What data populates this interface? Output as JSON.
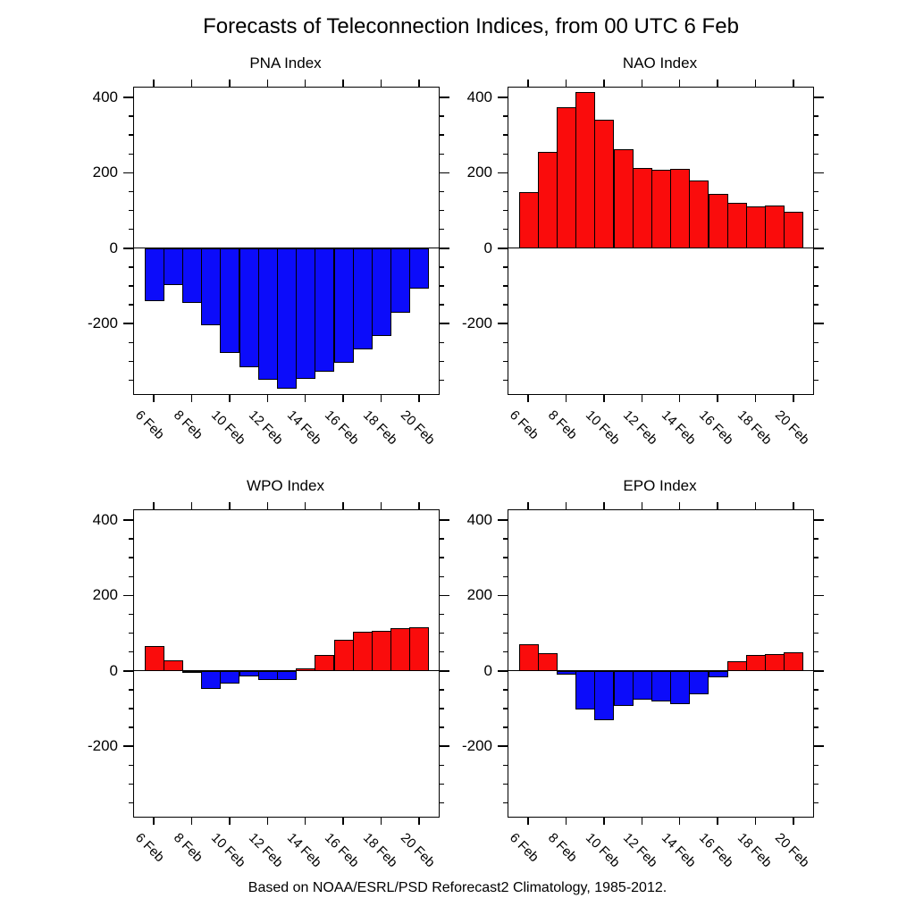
{
  "title": "Forecasts of Teleconnection Indices, from 00 UTC 6 Feb",
  "footer": "Based on NOAA/ESRL/PSD Reforecast2 Climatology, 1985-2012.",
  "colors": {
    "positive_bar": "#fa0c0c",
    "negative_bar": "#0c0cfa",
    "axis": "#000000",
    "background": "#ffffff"
  },
  "chart_data": [
    {
      "type": "bar",
      "title": "PNA Index",
      "categories": [
        "6 Feb",
        "7 Feb",
        "8 Feb",
        "9 Feb",
        "10 Feb",
        "11 Feb",
        "12 Feb",
        "13 Feb",
        "14 Feb",
        "15 Feb",
        "16 Feb",
        "17 Feb",
        "18 Feb",
        "19 Feb",
        "20 Feb"
      ],
      "values": [
        -140,
        -98,
        -145,
        -205,
        -278,
        -316,
        -350,
        -372,
        -346,
        -328,
        -305,
        -268,
        -233,
        -172,
        -108
      ],
      "x_tick_labels": [
        "6 Feb",
        "8 Feb",
        "10 Feb",
        "12 Feb",
        "14 Feb",
        "16 Feb",
        "18 Feb",
        "20 Feb"
      ],
      "y_tick_labels": [
        "400",
        "200",
        "0",
        "-200"
      ],
      "ylim": [
        -387,
        426
      ],
      "y_major_ticks": [
        400,
        200,
        0,
        -200
      ],
      "y_minor_step": 50,
      "grid": false,
      "legend": "none"
    },
    {
      "type": "bar",
      "title": "NAO Index",
      "categories": [
        "6 Feb",
        "7 Feb",
        "8 Feb",
        "9 Feb",
        "10 Feb",
        "11 Feb",
        "12 Feb",
        "13 Feb",
        "14 Feb",
        "15 Feb",
        "16 Feb",
        "17 Feb",
        "18 Feb",
        "19 Feb",
        "20 Feb"
      ],
      "values": [
        148,
        255,
        375,
        415,
        340,
        263,
        213,
        207,
        210,
        180,
        143,
        120,
        110,
        114,
        97
      ],
      "x_tick_labels": [
        "6 Feb",
        "8 Feb",
        "10 Feb",
        "12 Feb",
        "14 Feb",
        "16 Feb",
        "18 Feb",
        "20 Feb"
      ],
      "y_tick_labels": [
        "400",
        "200",
        "0",
        "-200"
      ],
      "ylim": [
        -387,
        426
      ],
      "y_major_ticks": [
        400,
        200,
        0,
        -200
      ],
      "y_minor_step": 50,
      "grid": false,
      "legend": "none"
    },
    {
      "type": "bar",
      "title": "WPO Index",
      "categories": [
        "6 Feb",
        "7 Feb",
        "8 Feb",
        "9 Feb",
        "10 Feb",
        "11 Feb",
        "12 Feb",
        "13 Feb",
        "14 Feb",
        "15 Feb",
        "16 Feb",
        "17 Feb",
        "18 Feb",
        "19 Feb",
        "20 Feb"
      ],
      "values": [
        65,
        28,
        -3,
        -49,
        -35,
        -15,
        -25,
        -25,
        6,
        42,
        83,
        103,
        105,
        113,
        115
      ],
      "x_tick_labels": [
        "6 Feb",
        "8 Feb",
        "10 Feb",
        "12 Feb",
        "14 Feb",
        "16 Feb",
        "18 Feb",
        "20 Feb"
      ],
      "y_tick_labels": [
        "400",
        "200",
        "0",
        "-200"
      ],
      "ylim": [
        -387,
        426
      ],
      "y_major_ticks": [
        400,
        200,
        0,
        -200
      ],
      "y_minor_step": 50,
      "grid": false,
      "legend": "none"
    },
    {
      "type": "bar",
      "title": "EPO Index",
      "categories": [
        "6 Feb",
        "7 Feb",
        "8 Feb",
        "9 Feb",
        "10 Feb",
        "11 Feb",
        "12 Feb",
        "13 Feb",
        "14 Feb",
        "15 Feb",
        "16 Feb",
        "17 Feb",
        "18 Feb",
        "19 Feb",
        "20 Feb"
      ],
      "values": [
        70,
        47,
        -9,
        -103,
        -130,
        -94,
        -76,
        -82,
        -89,
        -62,
        -17,
        25,
        41,
        44,
        48
      ],
      "x_tick_labels": [
        "6 Feb",
        "8 Feb",
        "10 Feb",
        "12 Feb",
        "14 Feb",
        "16 Feb",
        "18 Feb",
        "20 Feb"
      ],
      "y_tick_labels": [
        "400",
        "200",
        "0",
        "-200"
      ],
      "ylim": [
        -387,
        426
      ],
      "y_major_ticks": [
        400,
        200,
        0,
        -200
      ],
      "y_minor_step": 50,
      "grid": false,
      "legend": "none"
    }
  ]
}
